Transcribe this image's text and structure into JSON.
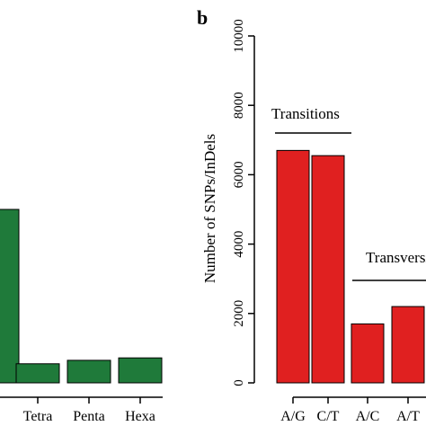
{
  "panel_b": {
    "label": "b",
    "group_labels": {
      "transitions": "Transitions",
      "transversions": "Transversions"
    }
  },
  "chart_data": [
    {
      "type": "bar",
      "panel": "a (partial)",
      "categories": [
        "",
        "Tetra",
        "Penta",
        "Hexa"
      ],
      "values": [
        5000,
        550,
        650,
        720
      ],
      "bar_color": "#1f7a3a",
      "title": "",
      "xlabel": "",
      "ylabel": "",
      "ylim": [
        0,
        10000
      ],
      "grid": false
    },
    {
      "type": "bar",
      "panel": "b",
      "categories": [
        "A/G",
        "C/T",
        "A/C",
        "A/T"
      ],
      "values": [
        6700,
        6550,
        1700,
        2200
      ],
      "bar_color": "#e02020",
      "title": "",
      "xlabel": "",
      "ylabel": "Number of SNPs/InDels",
      "ylim": [
        0,
        10000
      ],
      "yticks": [
        0,
        2000,
        4000,
        6000,
        8000,
        10000
      ],
      "grid": false
    }
  ]
}
